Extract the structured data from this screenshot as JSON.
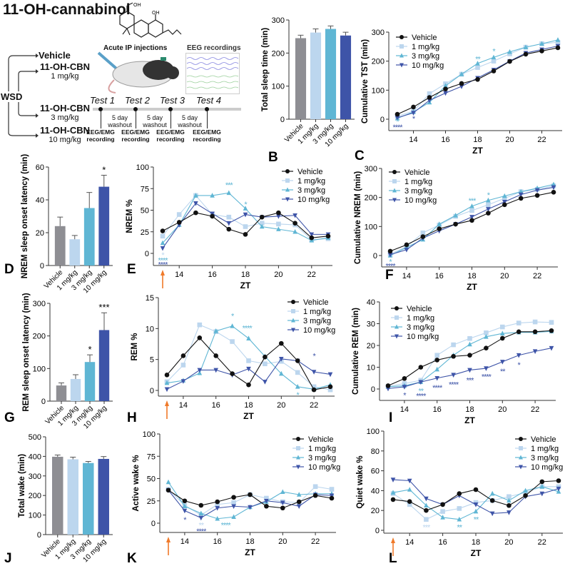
{
  "title": "11-OH-cannabinol",
  "schematic": {
    "chem_labels": [
      "OH",
      "OH"
    ],
    "wsd_label": "WSD",
    "groups": [
      {
        "name": "Vehicle",
        "dose": ""
      },
      {
        "name": "11-OH-CBN",
        "dose": "1 mg/kg"
      },
      {
        "name": "11-OH-CBN",
        "dose": "3 mg/kg"
      },
      {
        "name": "11-OH-CBN",
        "dose": "10 mg/kg"
      }
    ],
    "injection_label": "Acute IP injections",
    "eeg_label": "EEG recordings",
    "tests": [
      "Test 1",
      "Test 2",
      "Test 3",
      "Test 4"
    ],
    "washout": [
      "5 day",
      "washout"
    ],
    "recording": [
      "EEG/EMG",
      "recording"
    ]
  },
  "colors": {
    "Vehicle": "#111111",
    "1 mg/kg": "#bcd6ee",
    "3 mg/kg": "#5fb6d4",
    "10 mg/kg": "#3e54a8",
    "Vehicle_bar": "#8e8e93",
    "arrow": "#f07a2a"
  },
  "chart_data": [
    {
      "id": "B",
      "letter": "B",
      "type": "bar",
      "ylabel": "Total sleep time (min)",
      "ylim": [
        0,
        300
      ],
      "yticks": [
        0,
        100,
        200,
        300
      ],
      "categories": [
        "Vehicle",
        "1 mg/kg",
        "3 mg/kg",
        "10 mg/kg"
      ],
      "values": [
        245,
        262,
        273,
        253
      ],
      "errors": [
        9,
        11,
        9,
        10
      ],
      "sig": [
        "",
        "",
        "",
        ""
      ]
    },
    {
      "id": "C",
      "letter": "C",
      "type": "line",
      "ylabel": "Cumulative TST (min)",
      "xlabel": "ZT",
      "ylim": [
        -40,
        300
      ],
      "yticks": [
        0,
        100,
        200,
        300
      ],
      "xticks": [
        14,
        16,
        18,
        20,
        22
      ],
      "x": [
        13,
        14,
        15,
        16,
        17,
        18,
        19,
        20,
        21,
        22,
        23
      ],
      "legend": true,
      "arrow": false,
      "series": [
        {
          "name": "Vehicle",
          "values": [
            17,
            42,
            75,
            104,
            123,
            137,
            166,
            199,
            224,
            235,
            246
          ]
        },
        {
          "name": "1 mg/kg",
          "values": [
            10,
            28,
            88,
            122,
            155,
            178,
            200,
            225,
            248,
            260,
            265
          ]
        },
        {
          "name": "3 mg/kg",
          "values": [
            3,
            25,
            58,
            115,
            155,
            192,
            213,
            232,
            248,
            260,
            273
          ]
        },
        {
          "name": "10 mg/kg",
          "values": [
            5,
            22,
            65,
            90,
            113,
            142,
            170,
            200,
            228,
            240,
            252
          ]
        }
      ],
      "annotations": [
        {
          "x": 13,
          "y": -5,
          "text": "*",
          "series": "3 mg/kg"
        },
        {
          "x": 13,
          "y": -25,
          "text": "****",
          "series": "10 mg/kg"
        },
        {
          "x": 14,
          "y": 5,
          "text": "*",
          "series": "10 mg/kg"
        },
        {
          "x": 18,
          "y": 210,
          "text": "**",
          "series": "3 mg/kg"
        },
        {
          "x": 19,
          "y": 237,
          "text": "*",
          "series": "3 mg/kg"
        }
      ]
    },
    {
      "id": "D",
      "letter": "D",
      "type": "bar",
      "ylabel": "NREM sleep onset latency (min)",
      "ylim": [
        0,
        60
      ],
      "yticks": [
        0,
        20,
        40,
        60
      ],
      "categories": [
        "Vehicle",
        "1 mg/kg",
        "3 mg/kg",
        "10 mg/kg"
      ],
      "values": [
        24,
        16,
        35,
        48
      ],
      "errors": [
        5.5,
        2.3,
        9.5,
        7
      ],
      "sig": [
        "",
        "",
        "",
        "*"
      ]
    },
    {
      "id": "E",
      "letter": "E",
      "type": "line",
      "ylabel": "NREM %",
      "xlabel": "ZT",
      "ylim": [
        -12,
        100
      ],
      "yticks": [
        0,
        25,
        50,
        75,
        100
      ],
      "xticks": [
        14,
        16,
        18,
        20,
        22
      ],
      "x": [
        13,
        14,
        15,
        16,
        17,
        18,
        19,
        20,
        21,
        22,
        23
      ],
      "legend": true,
      "arrow": true,
      "series": [
        {
          "name": "Vehicle",
          "values": [
            26,
            36,
            47,
            43,
            28,
            22,
            42,
            47,
            35,
            18,
            20
          ]
        },
        {
          "name": "1 mg/kg",
          "values": [
            20,
            45,
            67,
            45,
            42,
            31,
            35,
            34,
            33,
            16,
            17
          ]
        },
        {
          "name": "3 mg/kg",
          "values": [
            12,
            33,
            67,
            67,
            70,
            52,
            31,
            28,
            25,
            15,
            18
          ]
        },
        {
          "name": "10 mg/kg",
          "values": [
            6,
            33,
            58,
            46,
            35,
            45,
            42,
            43,
            44,
            22,
            22
          ]
        }
      ],
      "annotations": [
        {
          "x": 13,
          "y": -1,
          "text": "*",
          "series": "1 mg/kg"
        },
        {
          "x": 13,
          "y": -7,
          "text": "****",
          "series": "3 mg/kg"
        },
        {
          "x": 13,
          "y": -12,
          "text": "****",
          "series": "10 mg/kg"
        },
        {
          "x": 17,
          "y": 80,
          "text": "***",
          "series": "3 mg/kg"
        },
        {
          "x": 18,
          "y": 58,
          "text": "*",
          "series": "3 mg/kg"
        }
      ]
    },
    {
      "id": "F",
      "letter": "F",
      "type": "line",
      "ylabel": "Cumulative NREM (min)",
      "xlabel": "ZT",
      "ylim": [
        -40,
        300
      ],
      "yticks": [
        0,
        100,
        200,
        300
      ],
      "xticks": [
        14,
        16,
        18,
        20,
        22
      ],
      "x": [
        13,
        14,
        15,
        16,
        17,
        18,
        19,
        20,
        21,
        22,
        23
      ],
      "legend": true,
      "arrow": false,
      "series": [
        {
          "name": "Vehicle",
          "values": [
            15,
            37,
            65,
            92,
            108,
            121,
            146,
            175,
            197,
            207,
            218
          ]
        },
        {
          "name": "1 mg/kg",
          "values": [
            5,
            30,
            78,
            105,
            135,
            155,
            175,
            197,
            220,
            228,
            240
          ]
        },
        {
          "name": "3 mg/kg",
          "values": [
            0,
            28,
            55,
            108,
            138,
            170,
            190,
            205,
            220,
            232,
            245
          ]
        },
        {
          "name": "10 mg/kg",
          "values": [
            3,
            20,
            60,
            85,
            108,
            133,
            160,
            185,
            210,
            225,
            235
          ]
        }
      ],
      "annotations": [
        {
          "x": 13,
          "y": -18,
          "text": "*",
          "series": "3 mg/kg"
        },
        {
          "x": 13,
          "y": -33,
          "text": "****",
          "series": "10 mg/kg"
        },
        {
          "x": 18,
          "y": 192,
          "text": "***",
          "series": "3 mg/kg"
        },
        {
          "x": 19,
          "y": 212,
          "text": "*",
          "series": "3 mg/kg"
        }
      ]
    },
    {
      "id": "G",
      "letter": "G",
      "type": "bar",
      "ylabel": "REM sleep onset latency (min)",
      "ylim": [
        0,
        300
      ],
      "yticks": [
        0,
        100,
        200,
        300
      ],
      "categories": [
        "Vehicle",
        "1 mg/kg",
        "3 mg/kg",
        "10 mg/kg"
      ],
      "values": [
        48,
        68,
        120,
        218
      ],
      "errors": [
        8,
        13,
        22,
        53
      ],
      "sig": [
        "",
        "",
        "*",
        "***"
      ]
    },
    {
      "id": "H",
      "letter": "H",
      "type": "line",
      "ylabel": "REM %",
      "xlabel": "ZT",
      "ylim": [
        -1,
        15
      ],
      "yticks": [
        0,
        5,
        10,
        15
      ],
      "xticks": [
        14,
        16,
        18,
        20,
        22
      ],
      "x": [
        13,
        14,
        15,
        16,
        17,
        18,
        19,
        20,
        21,
        22,
        23
      ],
      "legend": true,
      "arrow": true,
      "series": [
        {
          "name": "Vehicle",
          "values": [
            2.5,
            5.6,
            8.5,
            5.6,
            2.7,
            0.9,
            5.4,
            7.6,
            4.8,
            0.1,
            0.6
          ]
        },
        {
          "name": "1 mg/kg",
          "values": [
            1.4,
            4.1,
            10.6,
            9.5,
            7.9,
            4.8,
            4.3,
            4.7,
            2.9,
            0.6,
            0.1
          ]
        },
        {
          "name": "3 mg/kg",
          "values": [
            1.2,
            1.6,
            2.8,
            9.6,
            10.4,
            8.4,
            5.5,
            2.7,
            0.6,
            0.2,
            0.9
          ]
        },
        {
          "name": "10 mg/kg",
          "values": [
            0.2,
            1.5,
            3.3,
            3.3,
            2.5,
            3.5,
            1.4,
            5.1,
            4.8,
            3.0,
            2.6
          ]
        }
      ],
      "annotations": [
        {
          "x": 17,
          "y": 12.2,
          "text": "*",
          "series": "3 mg/kg"
        },
        {
          "x": 17.9,
          "y": 10.2,
          "text": "****",
          "series": "3 mg/kg"
        },
        {
          "x": 21,
          "y": -0.6,
          "text": "*",
          "series": "3 mg/kg"
        },
        {
          "x": 22,
          "y": 5.7,
          "text": "*",
          "series": "10 mg/kg"
        }
      ]
    },
    {
      "id": "I",
      "letter": "I",
      "type": "line",
      "ylabel": "Cumulative REM (min)",
      "xlabel": "ZT",
      "ylim": [
        -5,
        40
      ],
      "yticks": [
        0,
        10,
        20,
        30,
        40
      ],
      "xticks": [
        14,
        16,
        18,
        20,
        22
      ],
      "x": [
        13,
        14,
        15,
        16,
        17,
        18,
        19,
        20,
        21,
        22,
        23
      ],
      "legend": true,
      "arrow": false,
      "series": [
        {
          "name": "Vehicle",
          "values": [
            1.5,
            4.8,
            10,
            13.3,
            15,
            15.5,
            18.8,
            23.3,
            26.3,
            26.3,
            26.8
          ]
        },
        {
          "name": "1 mg/kg",
          "values": [
            1.2,
            2.5,
            4,
            15.5,
            20.3,
            23.2,
            25.8,
            28.5,
            30.3,
            30.8,
            30.6
          ]
        },
        {
          "name": "3 mg/kg",
          "values": [
            1,
            1.5,
            3.2,
            9,
            15.5,
            20.5,
            24,
            25.5,
            26,
            26,
            26.5
          ]
        },
        {
          "name": "10 mg/kg",
          "values": [
            0.2,
            1,
            3.2,
            5,
            6.5,
            8.7,
            9.5,
            12.5,
            15.5,
            17.3,
            18.8
          ]
        }
      ],
      "annotations": [
        {
          "x": 14,
          "y": -2.5,
          "text": "*",
          "series": "10 mg/kg"
        },
        {
          "x": 15,
          "y": -0.5,
          "text": "**",
          "series": "3 mg/kg"
        },
        {
          "x": 15,
          "y": -2.8,
          "text": "****",
          "series": "10 mg/kg"
        },
        {
          "x": 16,
          "y": 1,
          "text": "****",
          "series": "10 mg/kg"
        },
        {
          "x": 17,
          "y": 2.5,
          "text": "****",
          "series": "10 mg/kg"
        },
        {
          "x": 18,
          "y": 4.5,
          "text": "***",
          "series": "10 mg/kg"
        },
        {
          "x": 19,
          "y": 6,
          "text": "****",
          "series": "10 mg/kg"
        },
        {
          "x": 20,
          "y": 8.5,
          "text": "**",
          "series": "10 mg/kg"
        },
        {
          "x": 21,
          "y": 11.5,
          "text": "*",
          "series": "10 mg/kg"
        }
      ]
    },
    {
      "id": "J",
      "letter": "J",
      "type": "bar",
      "ylabel": "Total wake (min)",
      "ylim": [
        0,
        500
      ],
      "yticks": [
        0,
        100,
        200,
        300,
        400,
        500
      ],
      "categories": [
        "Vehicle",
        "1 mg/kg",
        "3 mg/kg",
        "10 mg/kg"
      ],
      "values": [
        398,
        385,
        366,
        387
      ],
      "errors": [
        9,
        11,
        8,
        12
      ],
      "sig": [
        "",
        "",
        "",
        ""
      ]
    },
    {
      "id": "K",
      "letter": "K",
      "type": "line",
      "ylabel": "Active wake %",
      "xlabel": "ZT",
      "ylim": [
        -10,
        100
      ],
      "yticks": [
        0,
        25,
        50,
        75,
        100
      ],
      "xticks": [
        14,
        16,
        18,
        20,
        22
      ],
      "x": [
        13,
        14,
        15,
        16,
        17,
        18,
        19,
        20,
        21,
        22,
        23
      ],
      "legend": true,
      "arrow": true,
      "series": [
        {
          "name": "Vehicle",
          "values": [
            37,
            25,
            20,
            24,
            29,
            32,
            19,
            17,
            24,
            31,
            28
          ]
        },
        {
          "name": "1 mg/kg",
          "values": [
            38,
            20,
            9,
            21,
            23,
            32,
            28,
            24,
            23,
            41,
            38
          ]
        },
        {
          "name": "3 mg/kg",
          "values": [
            46,
            19,
            11,
            5,
            7,
            18,
            24,
            35,
            32,
            33,
            33
          ]
        },
        {
          "name": "10 mg/kg",
          "values": [
            37,
            14,
            6,
            17,
            19,
            18,
            25,
            23,
            19,
            32,
            31
          ]
        }
      ],
      "annotations": [
        {
          "x": 14,
          "y": 5,
          "text": "*",
          "series": "10 mg/kg"
        },
        {
          "x": 15,
          "y": -1,
          "text": "**",
          "series": "1 mg/kg"
        },
        {
          "x": 15,
          "y": -8,
          "text": "****",
          "series": "10 mg/kg"
        },
        {
          "x": 16.5,
          "y": -1,
          "text": "****",
          "series": "3 mg/kg"
        }
      ]
    },
    {
      "id": "L",
      "letter": "L",
      "type": "line",
      "ylabel": "Quiet wake %",
      "xlabel": "ZT",
      "ylim": [
        0,
        100
      ],
      "yticks": [
        0,
        20,
        40,
        60,
        80,
        100
      ],
      "xticks": [
        14,
        16,
        18,
        20,
        22
      ],
      "x": [
        13,
        14,
        15,
        16,
        17,
        18,
        19,
        20,
        21,
        22,
        23
      ],
      "legend": true,
      "arrow": true,
      "series": [
        {
          "name": "Vehicle",
          "values": [
            31,
            29,
            20,
            26,
            37,
            41,
            30,
            25,
            35,
            49,
            50
          ]
        },
        {
          "name": "1 mg/kg",
          "values": [
            37,
            26,
            11,
            19,
            22,
            28,
            30,
            34,
            38,
            44,
            44
          ]
        },
        {
          "name": "3 mg/kg",
          "values": [
            38,
            41,
            25,
            13,
            11,
            19,
            37,
            30,
            40,
            44,
            39
          ]
        },
        {
          "name": "10 mg/kg",
          "values": [
            51,
            50,
            32,
            26,
            35,
            26,
            17,
            18,
            34,
            37,
            42
          ]
        }
      ],
      "annotations": [
        {
          "x": 15,
          "y": 4,
          "text": "***",
          "series": "1 mg/kg"
        },
        {
          "x": 17,
          "y": 4,
          "text": "**",
          "series": "3 mg/kg"
        },
        {
          "x": 18,
          "y": 12,
          "text": "**",
          "series": "3 mg/kg"
        }
      ]
    }
  ]
}
